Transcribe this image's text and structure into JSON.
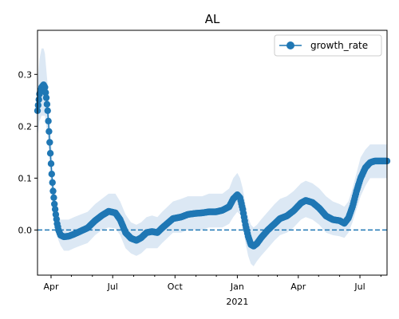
{
  "chart_data": {
    "type": "line",
    "title": "AL",
    "xlabel": "",
    "ylabel": "",
    "x_start": "2020-03-12",
    "x_end": "2021-08-10",
    "ylim": [
      -0.087,
      0.385
    ],
    "xticks": [
      {
        "date": "2020-04-01",
        "label": "Apr"
      },
      {
        "date": "2020-07-01",
        "label": "Jul"
      },
      {
        "date": "2020-10-01",
        "label": "Oct"
      },
      {
        "date": "2021-01-01",
        "label": "Jan"
      },
      {
        "date": "2021-04-01",
        "label": "Apr"
      },
      {
        "date": "2021-07-01",
        "label": "Jul"
      }
    ],
    "year_label": "2021",
    "yticks": [
      0.0,
      0.1,
      0.2,
      0.3
    ],
    "ytick_labels": [
      "0.0",
      "0.1",
      "0.2",
      "0.3"
    ],
    "reference_line": {
      "y": 0.0,
      "style": "dashed",
      "color": "#1f77b4"
    },
    "series": [
      {
        "name": "growth_rate",
        "color": "#1f77b4",
        "band_color": "#dce8f4",
        "marker": "circle",
        "points": [
          [
            "2020-03-12",
            0.23,
            0.18,
            0.28
          ],
          [
            "2020-03-15",
            0.262,
            0.21,
            0.33
          ],
          [
            "2020-03-18",
            0.275,
            0.22,
            0.35
          ],
          [
            "2020-03-21",
            0.28,
            0.22,
            0.35
          ],
          [
            "2020-03-23",
            0.275,
            0.22,
            0.34
          ],
          [
            "2020-03-25",
            0.255,
            0.2,
            0.31
          ],
          [
            "2020-03-27",
            0.23,
            0.18,
            0.28
          ],
          [
            "2020-03-29",
            0.19,
            0.14,
            0.24
          ],
          [
            "2020-03-31",
            0.148,
            0.1,
            0.2
          ],
          [
            "2020-04-02",
            0.108,
            0.07,
            0.15
          ],
          [
            "2020-04-04",
            0.075,
            0.04,
            0.11
          ],
          [
            "2020-04-06",
            0.05,
            0.02,
            0.08
          ],
          [
            "2020-04-08",
            0.03,
            0.005,
            0.06
          ],
          [
            "2020-04-10",
            0.012,
            -0.01,
            0.04
          ],
          [
            "2020-04-12",
            0.0,
            -0.02,
            0.03
          ],
          [
            "2020-04-15",
            -0.01,
            -0.03,
            0.02
          ],
          [
            "2020-04-20",
            -0.013,
            -0.04,
            0.02
          ],
          [
            "2020-04-27",
            -0.012,
            -0.04,
            0.02
          ],
          [
            "2020-05-05",
            -0.008,
            -0.035,
            0.025
          ],
          [
            "2020-05-15",
            -0.002,
            -0.03,
            0.03
          ],
          [
            "2020-05-25",
            0.004,
            -0.025,
            0.035
          ],
          [
            "2020-06-05",
            0.018,
            -0.01,
            0.05
          ],
          [
            "2020-06-15",
            0.028,
            0.0,
            0.06
          ],
          [
            "2020-06-25",
            0.036,
            0.005,
            0.07
          ],
          [
            "2020-07-05",
            0.033,
            0.003,
            0.07
          ],
          [
            "2020-07-12",
            0.02,
            -0.01,
            0.055
          ],
          [
            "2020-07-20",
            -0.005,
            -0.035,
            0.03
          ],
          [
            "2020-07-28",
            -0.016,
            -0.045,
            0.015
          ],
          [
            "2020-08-05",
            -0.02,
            -0.05,
            0.01
          ],
          [
            "2020-08-12",
            -0.015,
            -0.045,
            0.015
          ],
          [
            "2020-08-20",
            -0.005,
            -0.035,
            0.025
          ],
          [
            "2020-08-28",
            -0.003,
            -0.035,
            0.028
          ],
          [
            "2020-09-05",
            -0.005,
            -0.035,
            0.025
          ],
          [
            "2020-09-12",
            0.004,
            -0.025,
            0.035
          ],
          [
            "2020-09-20",
            0.013,
            -0.015,
            0.045
          ],
          [
            "2020-09-28",
            0.022,
            -0.005,
            0.055
          ],
          [
            "2020-10-10",
            0.025,
            -0.005,
            0.06
          ],
          [
            "2020-10-20",
            0.03,
            0.0,
            0.065
          ],
          [
            "2020-10-31",
            0.032,
            0.0,
            0.065
          ],
          [
            "2020-11-10",
            0.033,
            0.0,
            0.065
          ],
          [
            "2020-11-20",
            0.035,
            0.005,
            0.07
          ],
          [
            "2020-11-30",
            0.035,
            0.005,
            0.07
          ],
          [
            "2020-12-10",
            0.038,
            0.005,
            0.07
          ],
          [
            "2020-12-20",
            0.045,
            0.012,
            0.08
          ],
          [
            "2020-12-26",
            0.06,
            0.025,
            0.1
          ],
          [
            "2021-01-01",
            0.068,
            0.035,
            0.11
          ],
          [
            "2021-01-05",
            0.062,
            0.03,
            0.1
          ],
          [
            "2021-01-09",
            0.04,
            0.008,
            0.08
          ],
          [
            "2021-01-13",
            0.01,
            -0.025,
            0.05
          ],
          [
            "2021-01-17",
            -0.012,
            -0.05,
            0.025
          ],
          [
            "2021-01-21",
            -0.028,
            -0.065,
            0.01
          ],
          [
            "2021-01-25",
            -0.031,
            -0.07,
            0.005
          ],
          [
            "2021-01-30",
            -0.026,
            -0.06,
            0.01
          ],
          [
            "2021-02-05",
            -0.015,
            -0.05,
            0.02
          ],
          [
            "2021-02-15",
            0.0,
            -0.035,
            0.035
          ],
          [
            "2021-02-25",
            0.012,
            -0.02,
            0.05
          ],
          [
            "2021-03-05",
            0.022,
            -0.01,
            0.06
          ],
          [
            "2021-03-15",
            0.027,
            -0.005,
            0.065
          ],
          [
            "2021-03-25",
            0.037,
            0.005,
            0.075
          ],
          [
            "2021-04-05",
            0.052,
            0.02,
            0.09
          ],
          [
            "2021-04-12",
            0.057,
            0.025,
            0.095
          ],
          [
            "2021-04-22",
            0.053,
            0.02,
            0.09
          ],
          [
            "2021-05-02",
            0.042,
            0.01,
            0.08
          ],
          [
            "2021-05-12",
            0.027,
            -0.005,
            0.065
          ],
          [
            "2021-05-22",
            0.02,
            -0.01,
            0.055
          ],
          [
            "2021-06-01",
            0.018,
            -0.012,
            0.05
          ],
          [
            "2021-06-08",
            0.013,
            -0.015,
            0.045
          ],
          [
            "2021-06-14",
            0.023,
            -0.005,
            0.055
          ],
          [
            "2021-06-20",
            0.045,
            0.015,
            0.08
          ],
          [
            "2021-06-26",
            0.075,
            0.04,
            0.11
          ],
          [
            "2021-07-02",
            0.1,
            0.065,
            0.14
          ],
          [
            "2021-07-09",
            0.12,
            0.085,
            0.155
          ],
          [
            "2021-07-16",
            0.13,
            0.1,
            0.165
          ],
          [
            "2021-07-23",
            0.133,
            0.1,
            0.165
          ],
          [
            "2021-08-10",
            0.133,
            0.1,
            0.165
          ]
        ]
      }
    ],
    "legend": {
      "placement": "top-right",
      "entries": [
        "growth_rate"
      ]
    }
  }
}
